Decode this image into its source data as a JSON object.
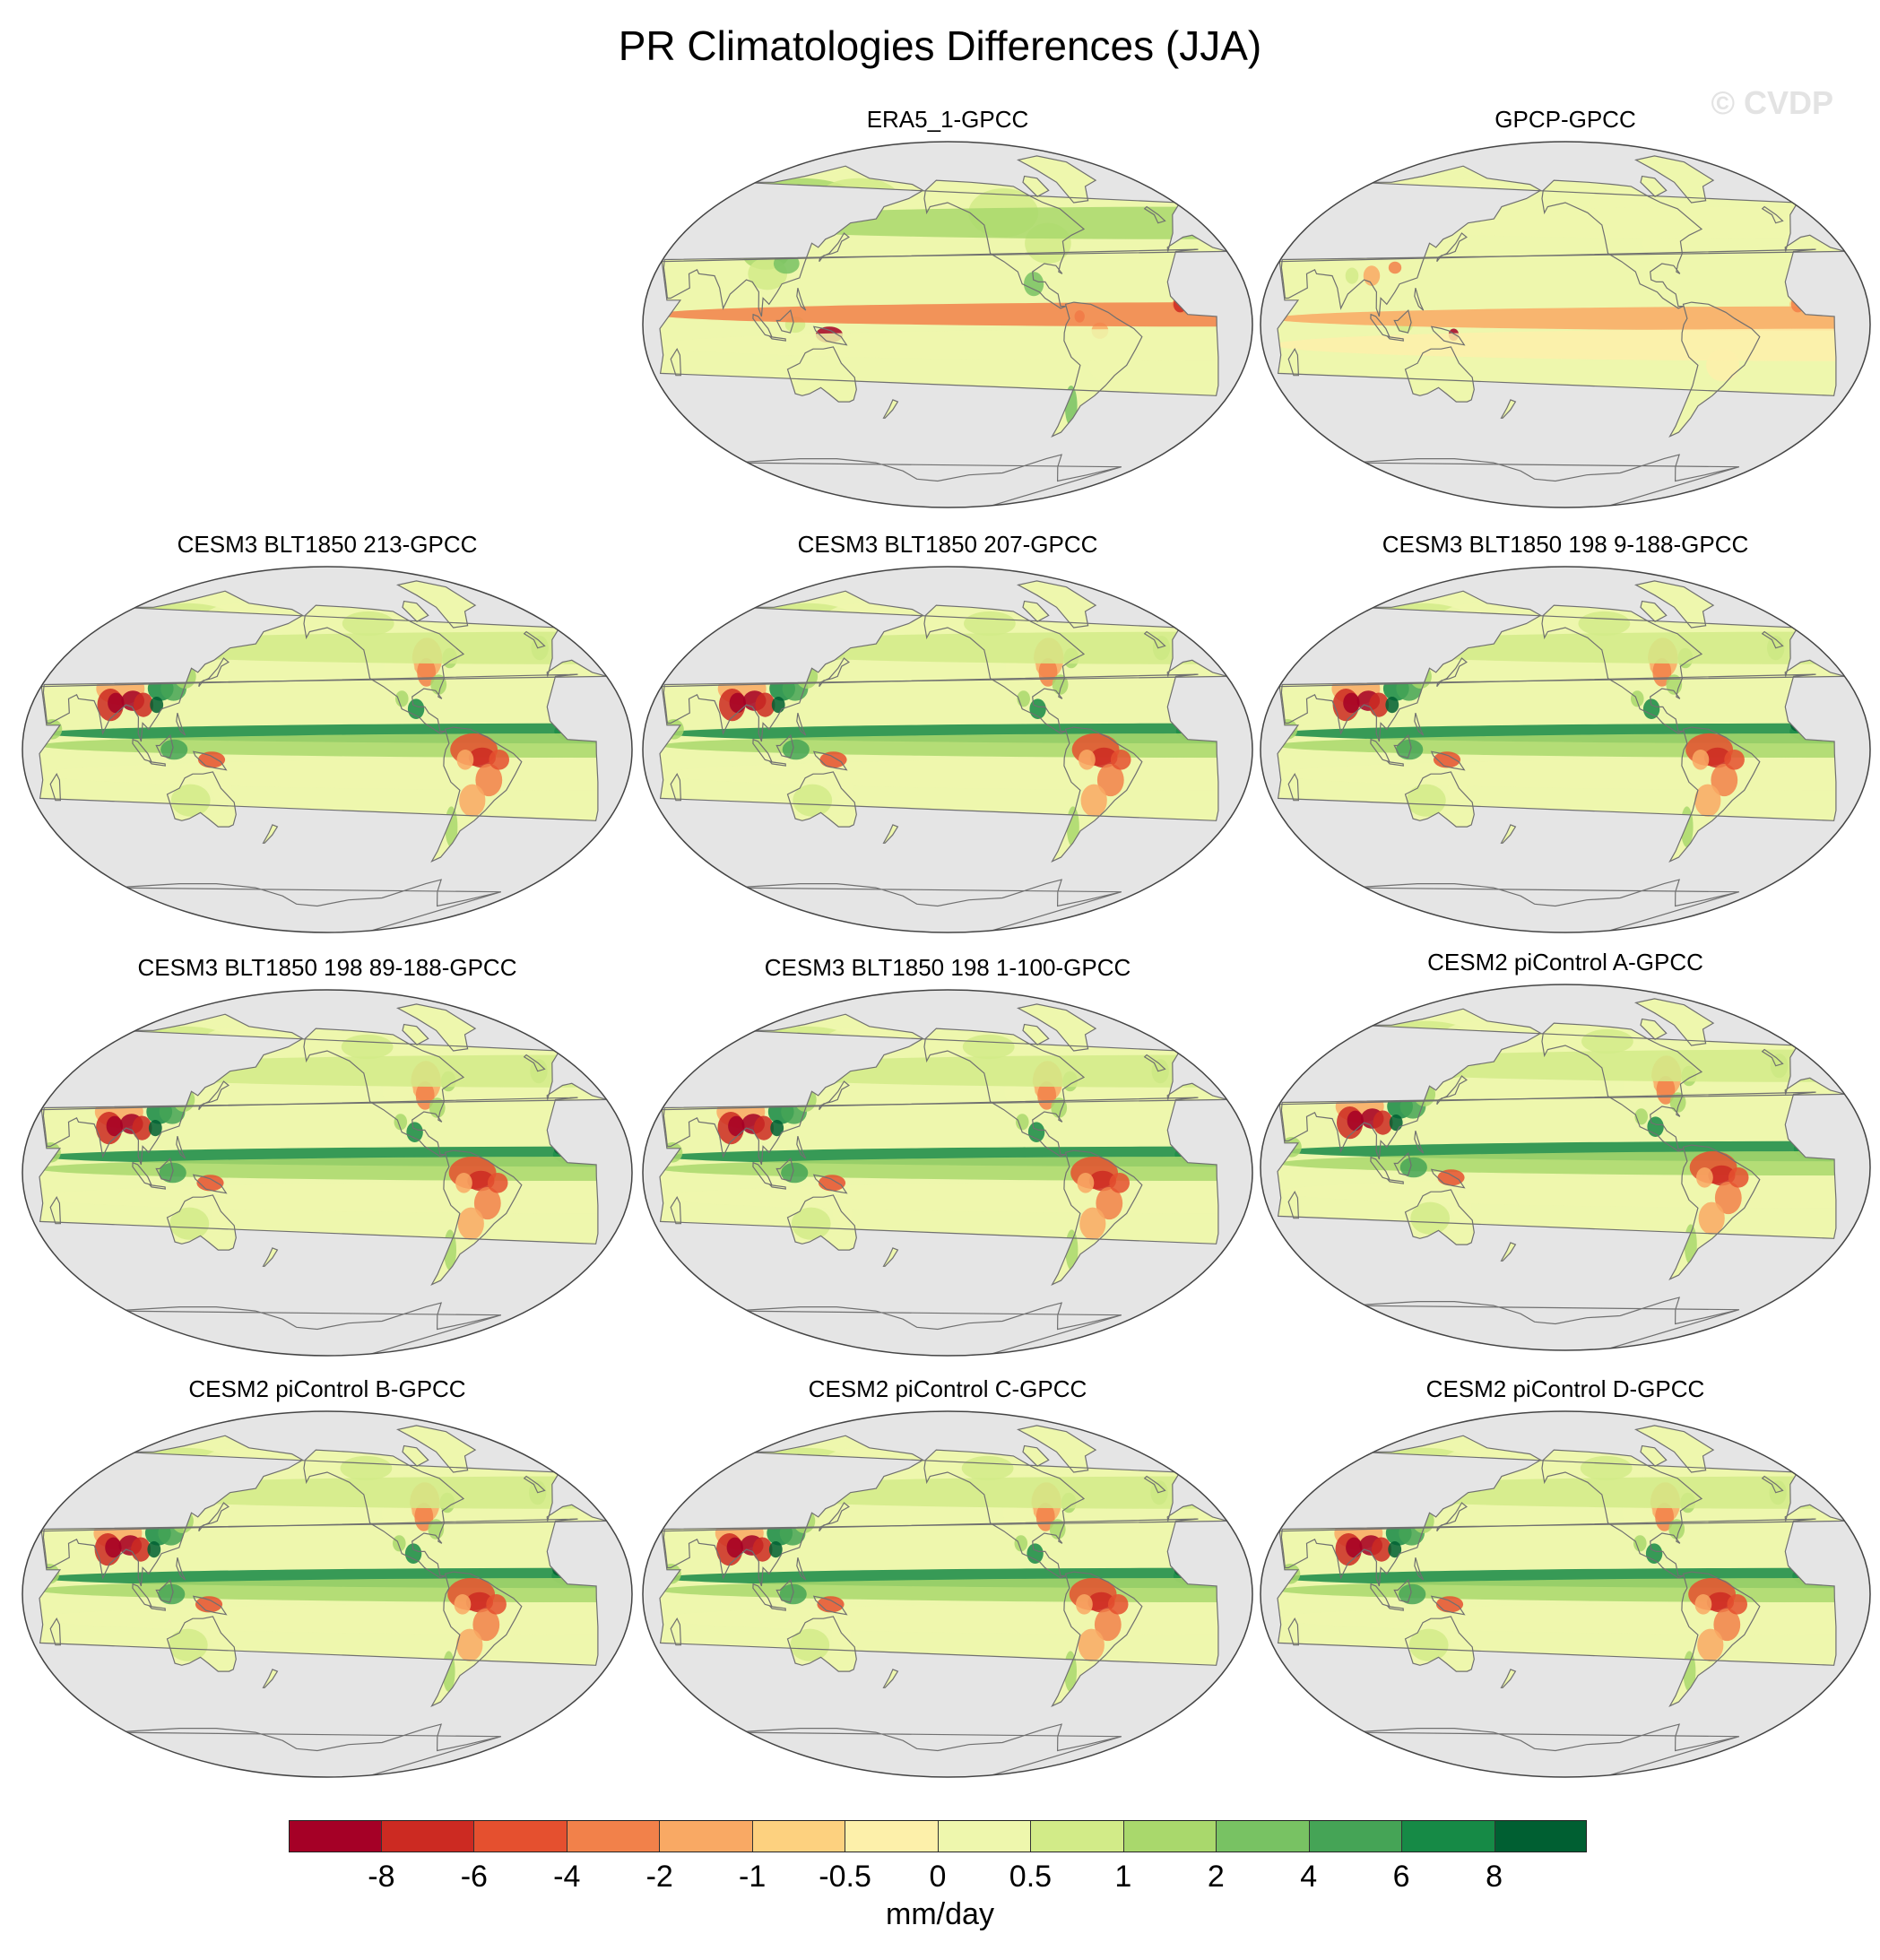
{
  "figure": {
    "title": "PR Climatologies Differences (JJA)",
    "watermark": "© CVDP"
  },
  "panels": [
    {
      "title": "ERA5_1-GPCC",
      "pattern": "obs-era5"
    },
    {
      "title": "GPCP-GPCC",
      "pattern": "obs-gpcp"
    },
    {
      "title": "CESM3 BLT1850 213-GPCC",
      "pattern": "model"
    },
    {
      "title": "CESM3 BLT1850 207-GPCC",
      "pattern": "model"
    },
    {
      "title": "CESM3 BLT1850 198 9-188-GPCC",
      "pattern": "model"
    },
    {
      "title": "CESM3 BLT1850 198 89-188-GPCC",
      "pattern": "model"
    },
    {
      "title": "CESM3 BLT1850 198 1-100-GPCC",
      "pattern": "model"
    },
    {
      "title": "CESM2 piControl A-GPCC",
      "pattern": "model"
    },
    {
      "title": "CESM2 piControl B-GPCC",
      "pattern": "model"
    },
    {
      "title": "CESM2 piControl C-GPCC",
      "pattern": "model"
    },
    {
      "title": "CESM2 piControl D-GPCC",
      "pattern": "model"
    }
  ],
  "colorbar": {
    "units": "mm/day",
    "labels": [
      "-8",
      "-6",
      "-4",
      "-2",
      "-1",
      "-0.5",
      "0",
      "0.5",
      "1",
      "2",
      "4",
      "6",
      "8"
    ],
    "colors": [
      "#a50026",
      "#cc2a22",
      "#e5502f",
      "#f2814a",
      "#f9a964",
      "#fdd17f",
      "#fdf0aa",
      "#eef7ad",
      "#d2eb88",
      "#a9d86c",
      "#78c263",
      "#45a456",
      "#168a46",
      "#005f32"
    ]
  },
  "map_colors": {
    "ocean": "#e5e5e5",
    "coast": "#707070",
    "border": "#444444"
  }
}
